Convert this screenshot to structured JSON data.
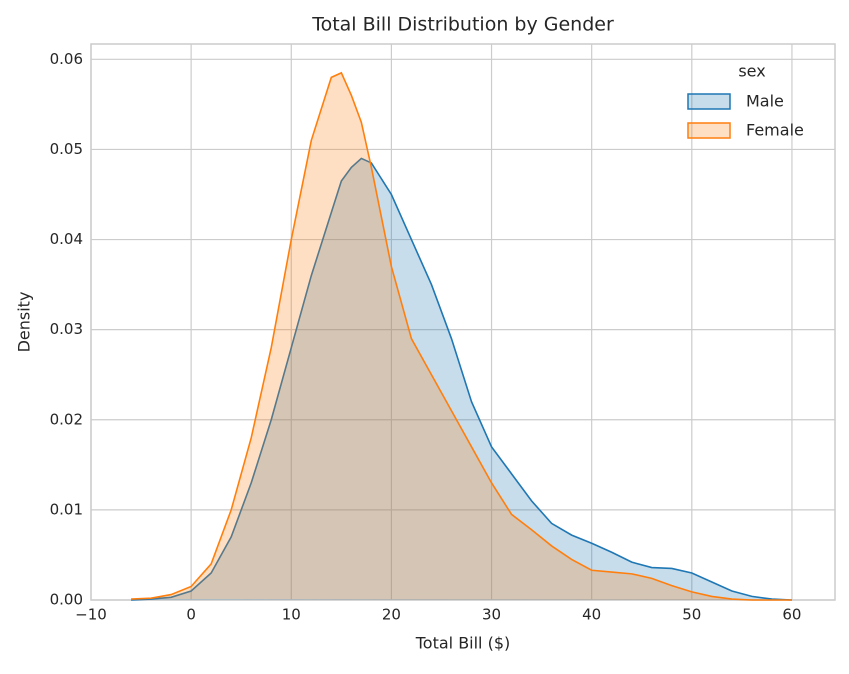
{
  "chart_data": {
    "type": "kde",
    "title": "Total Bill Distribution by Gender",
    "x_label": "Total Bill ($)",
    "y_label": "Density",
    "legend_title": "sex",
    "legend_position": "upper right",
    "grid": true,
    "fill_alpha": 0.25,
    "x": [
      -6,
      -4,
      -2,
      0,
      2,
      4,
      6,
      8,
      10,
      12,
      14,
      15,
      16,
      17,
      18,
      20,
      22,
      24,
      26,
      28,
      30,
      32,
      34,
      36,
      38,
      40,
      42,
      44,
      46,
      48,
      50,
      52,
      54,
      56,
      58,
      60
    ],
    "series": [
      {
        "name": "Male",
        "color": "#1f77b4",
        "values": [
          0,
          0.0001,
          0.0003,
          0.001,
          0.003,
          0.007,
          0.013,
          0.02,
          0.028,
          0.036,
          0.043,
          0.0465,
          0.048,
          0.049,
          0.0485,
          0.045,
          0.04,
          0.035,
          0.029,
          0.022,
          0.017,
          0.014,
          0.011,
          0.0085,
          0.0072,
          0.0063,
          0.0053,
          0.0042,
          0.0036,
          0.0035,
          0.003,
          0.002,
          0.001,
          0.0004,
          0.0001,
          0
        ]
      },
      {
        "name": "Female",
        "color": "#ff7f0e",
        "values": [
          0.0001,
          0.0002,
          0.0006,
          0.0015,
          0.004,
          0.01,
          0.018,
          0.028,
          0.04,
          0.051,
          0.058,
          0.0585,
          0.056,
          0.053,
          0.048,
          0.037,
          0.029,
          0.025,
          0.021,
          0.017,
          0.013,
          0.0095,
          0.0078,
          0.006,
          0.0045,
          0.0033,
          0.0031,
          0.0029,
          0.0024,
          0.0016,
          0.0009,
          0.0004,
          0.0001,
          0,
          0,
          0
        ]
      }
    ],
    "xlim": [
      -10,
      64.3
    ],
    "ylim": [
      0,
      0.0617
    ],
    "xticks": [
      {
        "value": -10,
        "label": "−10"
      },
      0,
      10,
      20,
      30,
      40,
      50,
      60
    ],
    "yticks": [
      {
        "value": 0,
        "label": "0.00"
      },
      {
        "value": 0.01,
        "label": "0.01"
      },
      {
        "value": 0.02,
        "label": "0.02"
      },
      {
        "value": 0.03,
        "label": "0.03"
      },
      {
        "value": 0.04,
        "label": "0.04"
      },
      {
        "value": 0.05,
        "label": "0.05"
      },
      {
        "value": 0.06,
        "label": "0.06"
      }
    ]
  }
}
